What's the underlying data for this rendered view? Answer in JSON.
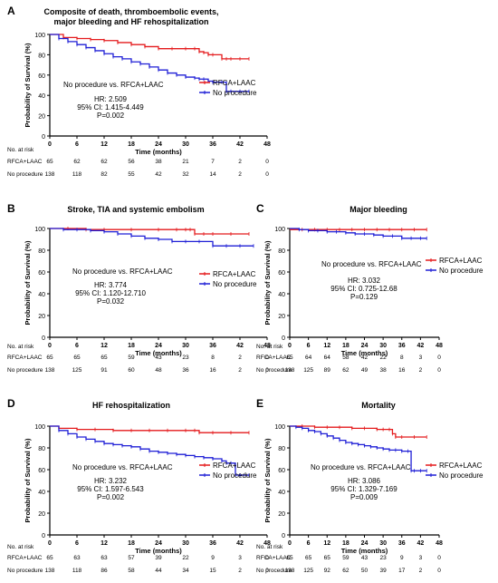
{
  "figure": {
    "common": {
      "ylabel": "Probability of Survival (%)",
      "xlabel": "Time (months)",
      "x_ticks": [
        0,
        6,
        12,
        18,
        24,
        30,
        36,
        42,
        48
      ],
      "y_ticks": [
        0,
        20,
        40,
        60,
        80,
        100
      ],
      "risk_title": "No. at risk",
      "comparison": "No procedure vs. RFCA+LAAC",
      "colors": {
        "RFCA+LAAC": "#e41a1c",
        "No procedure": "#1f1fd6"
      }
    }
  },
  "chart_data": [
    {
      "panel": "A",
      "type": "line",
      "subtype": "kaplan-meier",
      "title": "Composite of death, thromboembolic events, major bleeding and HF rehospitalization",
      "title_lines": [
        "Composite of death, thromboembolic events,",
        "major bleeding and HF rehospitalization"
      ],
      "xlabel": "Time (months)",
      "ylabel": "Probability of Survival (%)",
      "xlim": [
        0,
        48
      ],
      "ylim": [
        0,
        100
      ],
      "legend": "right",
      "stats": [
        "HR: 2.509",
        "95% CI: 1.415-4.449",
        "P=0.002"
      ],
      "series": [
        {
          "name": "RFCA+LAAC",
          "x": [
            0,
            3,
            6,
            9,
            12,
            15,
            18,
            21,
            24,
            27,
            30,
            32,
            33,
            34,
            35,
            36,
            38,
            39,
            40,
            42,
            44
          ],
          "y": [
            100,
            97,
            96,
            95,
            94,
            92,
            90,
            88,
            86,
            86,
            86,
            86,
            83,
            82,
            80,
            80,
            76,
            76,
            76,
            76,
            76
          ]
        },
        {
          "name": "No procedure",
          "x": [
            0,
            2,
            4,
            6,
            8,
            10,
            12,
            14,
            16,
            18,
            20,
            22,
            24,
            26,
            28,
            30,
            32,
            33,
            34,
            35,
            36,
            38,
            39,
            40,
            42,
            44
          ],
          "y": [
            100,
            96,
            93,
            90,
            87,
            84,
            81,
            78,
            76,
            73,
            71,
            68,
            65,
            62,
            60,
            58,
            57,
            56,
            56,
            54,
            53,
            53,
            44,
            44,
            44,
            44
          ]
        }
      ],
      "risk_table": [
        {
          "name": "RFCA+LAAC",
          "values": [
            "65",
            "62",
            "62",
            "56",
            "38",
            "21",
            "7",
            "2",
            "0"
          ]
        },
        {
          "name": "No procedure",
          "values": [
            "138",
            "118",
            "82",
            "55",
            "42",
            "32",
            "14",
            "2",
            "0"
          ]
        }
      ]
    },
    {
      "panel": "B",
      "type": "line",
      "subtype": "kaplan-meier",
      "title": "Stroke, TIA and systemic embolism",
      "title_lines": [
        "Stroke, TIA and systemic embolism"
      ],
      "xlabel": "Time (months)",
      "ylabel": "Probability of Survival (%)",
      "xlim": [
        0,
        48
      ],
      "ylim": [
        0,
        100
      ],
      "legend": "right",
      "stats": [
        "HR: 3.774",
        "95% CI: 1.120-12.710",
        "P=0.032"
      ],
      "series": [
        {
          "name": "RFCA+LAAC",
          "x": [
            0,
            4,
            8,
            12,
            18,
            24,
            28,
            30,
            31,
            32,
            34,
            36,
            40,
            44
          ],
          "y": [
            100,
            100,
            99,
            99,
            99,
            99,
            99,
            99,
            99,
            95,
            95,
            95,
            95,
            95
          ]
        },
        {
          "name": "No procedure",
          "x": [
            0,
            3,
            6,
            9,
            12,
            15,
            18,
            21,
            24,
            27,
            30,
            33,
            36,
            39,
            42,
            45
          ],
          "y": [
            100,
            99,
            99,
            98,
            97,
            95,
            93,
            91,
            90,
            88,
            88,
            88,
            84,
            84,
            84,
            84
          ]
        }
      ],
      "risk_table": [
        {
          "name": "RFCA+LAAC",
          "values": [
            "65",
            "65",
            "65",
            "59",
            "43",
            "23",
            "8",
            "2",
            "0"
          ]
        },
        {
          "name": "No procedure",
          "values": [
            "138",
            "125",
            "91",
            "60",
            "48",
            "36",
            "16",
            "2",
            "0"
          ]
        }
      ]
    },
    {
      "panel": "C",
      "type": "line",
      "subtype": "kaplan-meier",
      "title": "Major bleeding",
      "title_lines": [
        "Major bleeding"
      ],
      "xlabel": "Time (months)",
      "ylabel": "Probability of Survival (%)",
      "xlim": [
        0,
        48
      ],
      "ylim": [
        0,
        100
      ],
      "legend": "right",
      "stats": [
        "HR: 3.032",
        "95% CI: 0.725-12.68",
        "P=0.129"
      ],
      "series": [
        {
          "name": "RFCA+LAAC",
          "x": [
            0,
            4,
            8,
            12,
            16,
            20,
            24,
            28,
            32,
            36,
            40,
            44
          ],
          "y": [
            99,
            99,
            99,
            99,
            99,
            99,
            99,
            99,
            99,
            99,
            99,
            99
          ]
        },
        {
          "name": "No procedure",
          "x": [
            0,
            3,
            6,
            9,
            12,
            15,
            18,
            21,
            24,
            27,
            30,
            33,
            36,
            39,
            42,
            44
          ],
          "y": [
            100,
            99,
            98,
            98,
            97,
            97,
            96,
            95,
            95,
            94,
            93,
            93,
            91,
            91,
            91,
            91
          ]
        }
      ],
      "risk_table": [
        {
          "name": "RFCA+LAAC",
          "values": [
            "65",
            "64",
            "64",
            "58",
            "42",
            "22",
            "8",
            "3",
            "0"
          ]
        },
        {
          "name": "No procedure",
          "values": [
            "138",
            "125",
            "89",
            "62",
            "49",
            "38",
            "16",
            "2",
            "0"
          ]
        }
      ]
    },
    {
      "panel": "D",
      "type": "line",
      "subtype": "kaplan-meier",
      "title": "HF rehospitalization",
      "title_lines": [
        "HF rehospitalization"
      ],
      "xlabel": "Time (months)",
      "ylabel": "Probability of Survival (%)",
      "xlim": [
        0,
        48
      ],
      "ylim": [
        0,
        100
      ],
      "legend": "right",
      "stats": [
        "HR: 3.232",
        "95% CI: 1.597-6.543",
        "P=0.002"
      ],
      "series": [
        {
          "name": "RFCA+LAAC",
          "x": [
            0,
            2,
            6,
            10,
            14,
            18,
            22,
            26,
            30,
            32,
            33,
            36,
            40,
            44
          ],
          "y": [
            100,
            98,
            97,
            97,
            96,
            96,
            96,
            96,
            96,
            96,
            94,
            94,
            94,
            94
          ]
        },
        {
          "name": "No procedure",
          "x": [
            0,
            2,
            4,
            6,
            8,
            10,
            12,
            14,
            16,
            18,
            20,
            22,
            24,
            26,
            28,
            30,
            32,
            34,
            36,
            38,
            39,
            40,
            41,
            42,
            44
          ],
          "y": [
            100,
            96,
            93,
            90,
            88,
            86,
            84,
            83,
            82,
            81,
            79,
            77,
            76,
            75,
            74,
            73,
            72,
            71,
            70,
            68,
            66,
            66,
            55,
            55,
            55
          ]
        }
      ],
      "risk_table": [
        {
          "name": "RFCA+LAAC",
          "values": [
            "65",
            "63",
            "63",
            "57",
            "39",
            "22",
            "9",
            "3",
            "0"
          ]
        },
        {
          "name": "No procedure",
          "values": [
            "138",
            "118",
            "86",
            "58",
            "44",
            "34",
            "15",
            "2",
            "0"
          ]
        }
      ]
    },
    {
      "panel": "E",
      "type": "line",
      "subtype": "kaplan-meier",
      "title": "Mortality",
      "title_lines": [
        "Mortality"
      ],
      "xlabel": "Time (months)",
      "ylabel": "Probability of Survival (%)",
      "xlim": [
        0,
        48
      ],
      "ylim": [
        0,
        100
      ],
      "legend": "right",
      "stats": [
        "HR: 3.086",
        "95% CI: 1.329-7.169",
        "P=0.009"
      ],
      "series": [
        {
          "name": "RFCA+LAAC",
          "x": [
            0,
            4,
            8,
            12,
            16,
            20,
            24,
            28,
            30,
            32,
            33,
            34,
            36,
            40,
            44
          ],
          "y": [
            100,
            100,
            99,
            99,
            99,
            98,
            98,
            97,
            97,
            97,
            93,
            90,
            90,
            90,
            90
          ]
        },
        {
          "name": "No procedure",
          "x": [
            0,
            2,
            4,
            6,
            8,
            10,
            12,
            14,
            16,
            18,
            20,
            22,
            24,
            26,
            28,
            30,
            32,
            34,
            36,
            38,
            39,
            40,
            42,
            44
          ],
          "y": [
            100,
            99,
            98,
            96,
            95,
            93,
            91,
            89,
            87,
            85,
            84,
            83,
            82,
            81,
            80,
            79,
            78,
            78,
            77,
            77,
            59,
            59,
            59,
            59
          ]
        }
      ],
      "risk_table": [
        {
          "name": "RFCA+LAAC",
          "values": [
            "65",
            "65",
            "65",
            "59",
            "43",
            "23",
            "9",
            "3",
            "0"
          ]
        },
        {
          "name": "No procedure",
          "values": [
            "138",
            "125",
            "92",
            "62",
            "50",
            "39",
            "17",
            "2",
            "0"
          ]
        }
      ]
    }
  ]
}
